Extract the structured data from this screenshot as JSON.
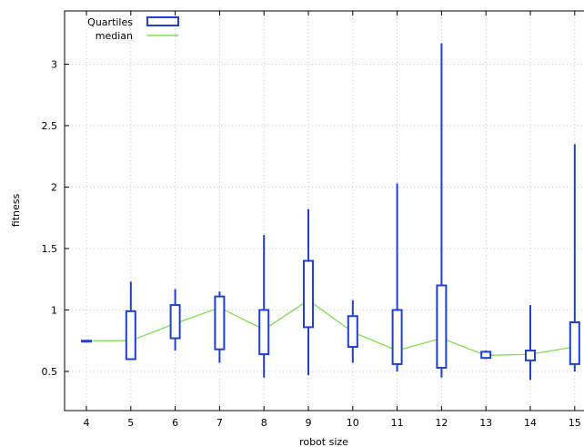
{
  "chart_data": {
    "type": "boxplot",
    "xlabel": "robot size",
    "ylabel": "fitness",
    "x_ticks": [
      "4",
      "5",
      "6",
      "7",
      "8",
      "9",
      "10",
      "11",
      "12",
      "13",
      "14",
      "15"
    ],
    "y_ticks": [
      "0.5",
      "1",
      "1.5",
      "2",
      "2.5",
      "3"
    ],
    "xlim": [
      3.5,
      15.2
    ],
    "ylim": [
      0.25,
      3.75
    ],
    "grid": true,
    "legend_position": "top-left",
    "legend": {
      "quartiles": "Quartiles",
      "median": "median"
    },
    "colors": {
      "box": "#1f3fd6",
      "median": "#7ee04a",
      "grid": "#c8c8c8"
    },
    "boxes": [
      {
        "x": 4,
        "min": 0.75,
        "q1": 0.75,
        "median": 0.75,
        "q3": 0.75,
        "max": 0.75
      },
      {
        "x": 5,
        "min": 0.6,
        "q1": 0.6,
        "median": 0.75,
        "q3": 0.99,
        "max": 1.23
      },
      {
        "x": 6,
        "min": 0.67,
        "q1": 0.77,
        "median": 0.89,
        "q3": 1.04,
        "max": 1.17
      },
      {
        "x": 7,
        "min": 0.57,
        "q1": 0.68,
        "median": 1.02,
        "q3": 1.11,
        "max": 1.15
      },
      {
        "x": 8,
        "min": 0.45,
        "q1": 0.64,
        "median": 0.84,
        "q3": 1.0,
        "max": 1.61
      },
      {
        "x": 9,
        "min": 0.47,
        "q1": 0.86,
        "median": 1.08,
        "q3": 1.4,
        "max": 1.82
      },
      {
        "x": 10,
        "min": 0.57,
        "q1": 0.7,
        "median": 0.82,
        "q3": 0.95,
        "max": 1.08
      },
      {
        "x": 11,
        "min": 0.5,
        "q1": 0.56,
        "median": 0.67,
        "q3": 1.0,
        "max": 2.03
      },
      {
        "x": 12,
        "min": 0.45,
        "q1": 0.53,
        "median": 0.77,
        "q3": 1.2,
        "max": 3.17
      },
      {
        "x": 13,
        "min": 0.6,
        "q1": 0.61,
        "median": 0.63,
        "q3": 0.66,
        "max": 0.67
      },
      {
        "x": 14,
        "min": 0.43,
        "q1": 0.59,
        "median": 0.64,
        "q3": 0.67,
        "max": 1.04
      },
      {
        "x": 15,
        "min": 0.5,
        "q1": 0.56,
        "median": 0.7,
        "q3": 0.9,
        "max": 2.35
      }
    ]
  }
}
